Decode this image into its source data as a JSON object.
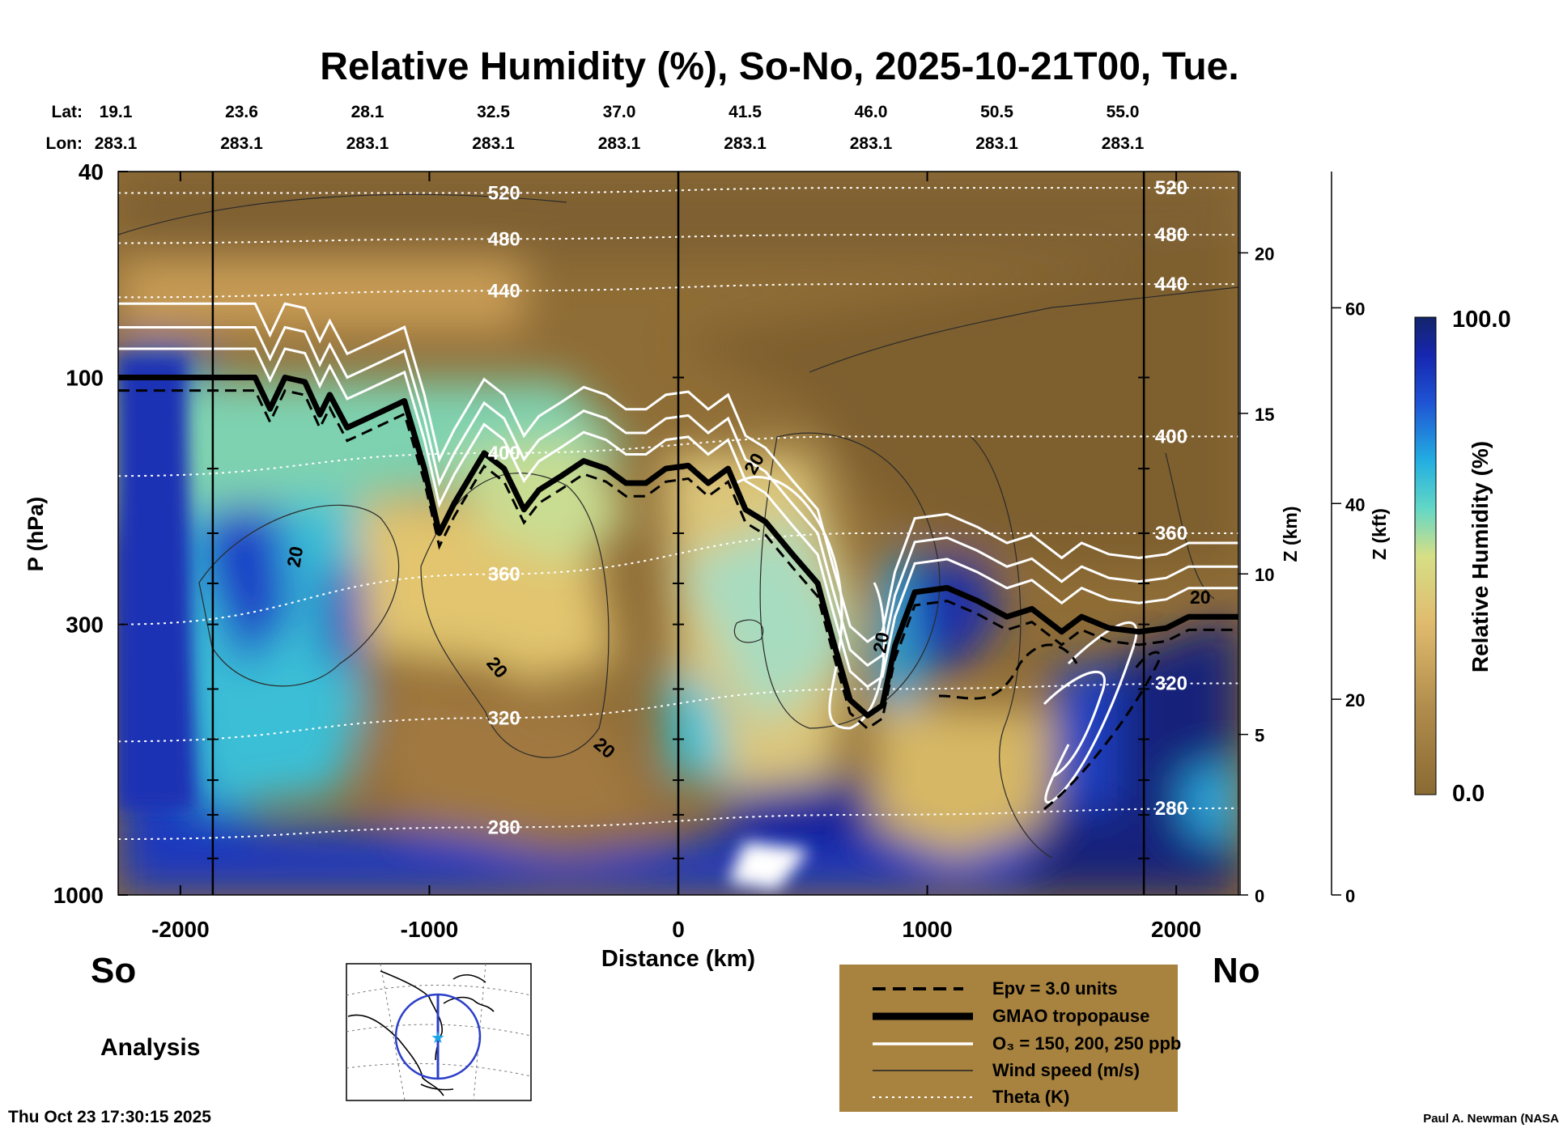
{
  "chart_data": {
    "type": "heatmap",
    "title": "Relative Humidity (%), So-No, 2025-10-21T00, Tue.",
    "xlabel": "Distance (km)",
    "ylabel": "P (hPa)",
    "y2label": "Z (km)",
    "y3label": "Z (kft)",
    "xlim": [
      -2250,
      2250
    ],
    "x_ticks": [
      -2000,
      -1000,
      0,
      1000,
      2000
    ],
    "p_ticks": [
      40,
      100,
      300,
      1000
    ],
    "p_range": [
      1000,
      40
    ],
    "z_km_ticks": [
      0,
      5,
      10,
      15,
      20
    ],
    "z_kft_ticks": [
      0,
      20,
      40,
      60
    ],
    "markers_km": [
      -1870,
      0,
      1870
    ],
    "latlon": {
      "lat_label": "Lat:",
      "lon_label": "Lon:",
      "lats": [
        "19.1",
        "23.6",
        "28.1",
        "32.5",
        "37.0",
        "41.5",
        "46.0",
        "50.5",
        "55.0"
      ],
      "lons": [
        "283.1",
        "283.1",
        "283.1",
        "283.1",
        "283.1",
        "283.1",
        "283.1",
        "283.1",
        "283.1"
      ]
    },
    "colorbar": {
      "label": "Relative Humidity (%)",
      "min_label": "0.0",
      "max_label": "100.0",
      "range": [
        0,
        100
      ]
    },
    "tropopause": {
      "x": [
        -2250,
        -1700,
        -1640,
        -1580,
        -1500,
        -1440,
        -1400,
        -1330,
        -1250,
        -1100,
        -1020,
        -960,
        -900,
        -780,
        -700,
        -620,
        -560,
        -470,
        -380,
        -290,
        -210,
        -130,
        -50,
        40,
        120,
        200,
        270,
        350,
        460,
        560,
        620,
        690,
        760,
        820,
        870,
        950,
        1080,
        1200,
        1320,
        1420,
        1540,
        1620,
        1730,
        1850,
        1960,
        2050,
        2250
      ],
      "p": [
        100,
        100,
        115,
        100,
        102,
        118,
        108,
        125,
        120,
        111,
        150,
        200,
        175,
        140,
        150,
        180,
        165,
        155,
        145,
        150,
        160,
        160,
        150,
        148,
        160,
        150,
        180,
        190,
        220,
        250,
        320,
        420,
        450,
        430,
        330,
        260,
        255,
        270,
        290,
        280,
        310,
        290,
        305,
        310,
        305,
        290,
        290
      ]
    },
    "theta_lines": [
      {
        "label": "280",
        "p": [
          780,
          740,
          700,
          680
        ]
      },
      {
        "label": "320",
        "p": [
          505,
          455,
          400,
          390
        ]
      },
      {
        "label": "360",
        "p": [
          300,
          240,
          200,
          200
        ]
      },
      {
        "label": "400",
        "p": [
          155,
          140,
          130,
          130
        ]
      },
      {
        "label": "440",
        "p": [
          70,
          68,
          66,
          66
        ]
      },
      {
        "label": "480",
        "p": [
          55,
          54,
          53,
          53
        ]
      },
      {
        "label": "520",
        "p": [
          44,
          44,
          43,
          43
        ]
      }
    ],
    "contour_labels": [
      "20",
      "20",
      "20",
      "20",
      "20",
      "20"
    ],
    "legend": [
      {
        "label": "Epv = 3.0 units",
        "style": "dashed"
      },
      {
        "label": "GMAO tropopause",
        "style": "thick"
      },
      {
        "label": "O₃ = 150, 200, 250 ppb",
        "style": "white"
      },
      {
        "label": "Wind speed (m/s)",
        "style": "thin"
      },
      {
        "label": "Theta (K)",
        "style": "dotted"
      }
    ]
  },
  "labels": {
    "south": "So",
    "north": "No",
    "analysis": "Analysis",
    "timestamp": "Thu Oct 23 17:30:15 2025",
    "credit": "Paul A. Newman (NASA"
  }
}
